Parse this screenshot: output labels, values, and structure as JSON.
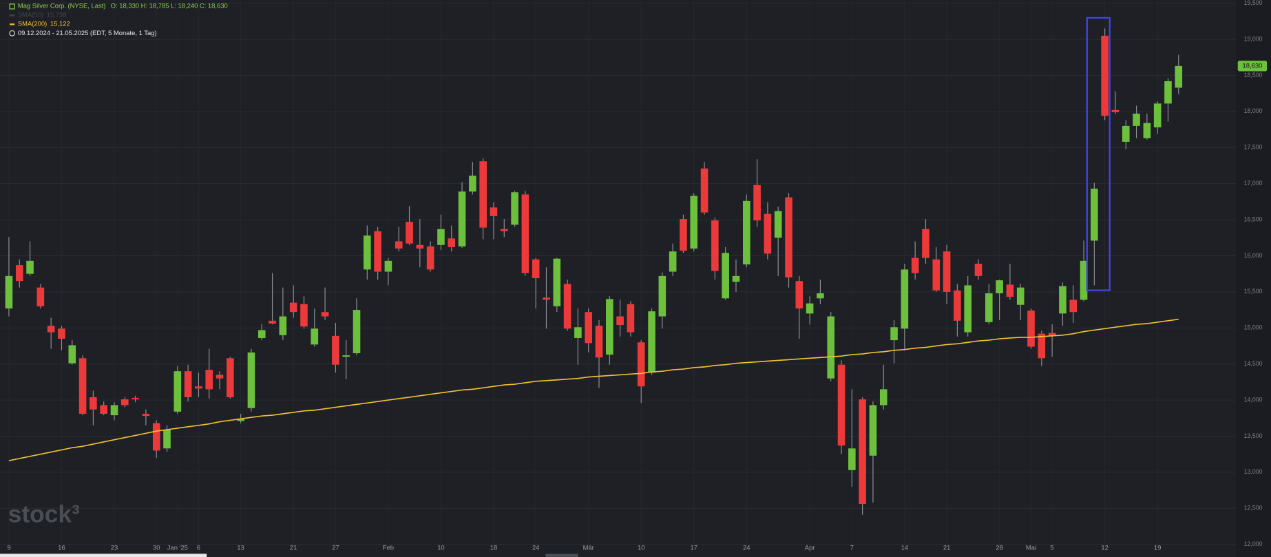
{
  "chart_data": {
    "type": "candlestick",
    "title": "Mag Silver Corp. (NYSE, Last)",
    "ohlc_summary": "O: 18,330  H: 18,785  L: 18,240  C: 18,630",
    "period": "09.12.2024 - 21.05.2025  (EDT, 5 Monate, 1 Tag)",
    "last_label": "18,630",
    "watermark": "stock³",
    "up_color": "#6cc03c",
    "down_color": "#ec3a3a",
    "wick_color": "#8e9198",
    "grid": true,
    "ylim": [
      11.96,
      19.545
    ],
    "yticks": [
      {
        "value": 12,
        "label": "12,000"
      },
      {
        "value": 12.5,
        "label": "12,500"
      },
      {
        "value": 13,
        "label": "13,000"
      },
      {
        "value": 13.5,
        "label": "13,500"
      },
      {
        "value": 14,
        "label": "14,000"
      },
      {
        "value": 14.5,
        "label": "14,500"
      },
      {
        "value": 15,
        "label": "15,000"
      },
      {
        "value": 15.5,
        "label": "15,500"
      },
      {
        "value": 16,
        "label": "16,000"
      },
      {
        "value": 16.5,
        "label": "16,500"
      },
      {
        "value": 17,
        "label": "17,000"
      },
      {
        "value": 17.5,
        "label": "17,500"
      },
      {
        "value": 18,
        "label": "18,000"
      },
      {
        "value": 18.5,
        "label": "18,500"
      },
      {
        "value": 19,
        "label": "19,000"
      },
      {
        "value": 19.5,
        "label": "19,500"
      }
    ],
    "categories": [
      "9",
      null,
      null,
      null,
      null,
      "16",
      null,
      null,
      null,
      null,
      "23",
      null,
      null,
      null,
      "30",
      null,
      "Jan '25",
      null,
      "6",
      null,
      null,
      null,
      "13",
      null,
      null,
      null,
      null,
      "21",
      null,
      null,
      null,
      "27",
      null,
      null,
      null,
      null,
      "Feb",
      null,
      null,
      null,
      null,
      "10",
      null,
      null,
      null,
      null,
      "18",
      null,
      null,
      null,
      "24",
      null,
      null,
      null,
      null,
      "Mär",
      null,
      null,
      null,
      null,
      "10",
      null,
      null,
      null,
      null,
      "17",
      null,
      null,
      null,
      null,
      "24",
      null,
      null,
      null,
      null,
      null,
      "Apr",
      null,
      null,
      null,
      "7",
      null,
      null,
      null,
      null,
      "14",
      null,
      null,
      null,
      "21",
      null,
      null,
      null,
      null,
      "28",
      null,
      null,
      "Mai",
      null,
      "5",
      null,
      null,
      null,
      null,
      "12",
      null,
      null,
      null,
      null,
      "19",
      null,
      null
    ],
    "open": [
      15.27,
      15.87,
      15.75,
      15.56,
      15.03,
      14.99,
      14.51,
      14.58,
      14.04,
      13.93,
      13.79,
      14.01,
      14.03,
      13.81,
      13.68,
      13.33,
      13.84,
      14.4,
      14.19,
      14.42,
      14.35,
      14.58,
      13.71,
      13.89,
      14.86,
      15.1,
      14.9,
      15.35,
      15.33,
      14.77,
      15.22,
      14.89,
      14.6,
      14.65,
      15.81,
      16.34,
      15.78,
      16.2,
      16.47,
      16.15,
      16.13,
      16.15,
      16.24,
      16.13,
      16.89,
      17.31,
      16.67,
      16.37,
      16.43,
      16.85,
      15.95,
      15.42,
      15.3,
      15.61,
      14.86,
      15.22,
      15.03,
      14.63,
      15.16,
      15.33,
      14.8,
      14.38,
      15.16,
      15.78,
      16.51,
      16.1,
      17.21,
      16.49,
      15.41,
      15.64,
      15.88,
      16.98,
      16.58,
      16.25,
      16.81,
      15.65,
      15.2,
      15.41,
      14.3,
      14.49,
      13.03,
      14.01,
      13.23,
      13.93,
      14.83,
      14.99,
      15.97,
      16.37,
      15.95,
      16.06,
      15.52,
      14.94,
      15.89,
      15.08,
      15.48,
      15.6,
      15.32,
      15.24,
      14.92,
      14.93,
      15.2,
      15.39,
      15.39,
      16.21,
      19.05,
      18.02,
      17.58,
      17.8,
      17.63,
      17.78,
      18.11,
      18.33
    ],
    "high": [
      16.26,
      15.95,
      16.2,
      15.61,
      15.14,
      15.03,
      14.83,
      14.62,
      14.13,
      13.98,
      13.97,
      14.04,
      14.06,
      13.87,
      13.72,
      13.65,
      14.47,
      14.49,
      14.38,
      14.71,
      14.4,
      14.6,
      13.81,
      14.71,
      15.05,
      15.76,
      15.56,
      15.59,
      15.44,
      15.27,
      15.56,
      15.07,
      14.83,
      15.41,
      16.42,
      16.4,
      15.97,
      16.4,
      16.69,
      16.51,
      16.2,
      16.57,
      16.42,
      17.02,
      17.3,
      17.35,
      16.74,
      16.51,
      16.9,
      16.9,
      15.97,
      15.84,
      15.97,
      15.67,
      15.27,
      15.27,
      15.11,
      15.44,
      15.39,
      15.37,
      14.83,
      15.27,
      15.77,
      16.17,
      16.57,
      16.87,
      17.3,
      16.53,
      16.12,
      15.95,
      16.85,
      17.34,
      16.74,
      16.68,
      16.87,
      15.72,
      15.44,
      15.67,
      15.22,
      14.55,
      14.15,
      14.04,
      13.98,
      14.49,
      15.11,
      15.89,
      16.2,
      16.51,
      16.12,
      16.15,
      15.61,
      15.72,
      15.95,
      15.61,
      15.67,
      15.89,
      15.61,
      15.27,
      14.96,
      15.05,
      15.63,
      15.59,
      16.21,
      17.01,
      19.15,
      18.28,
      17.88,
      18.08,
      17.97,
      18.14,
      18.46,
      18.785
    ],
    "low": [
      15.16,
      15.56,
      15.72,
      15.27,
      14.71,
      14.69,
      14.49,
      13.79,
      13.65,
      13.79,
      13.72,
      13.9,
      13.97,
      13.65,
      13.2,
      13.28,
      13.81,
      13.98,
      14.04,
      14.02,
      14.15,
      14.02,
      13.68,
      13.84,
      14.83,
      15.05,
      14.83,
      15.14,
      14.99,
      14.74,
      15.11,
      14.38,
      14.29,
      14.62,
      15.67,
      15.67,
      15.59,
      16.06,
      16.15,
      15.84,
      15.78,
      16.08,
      16.06,
      16.11,
      16.85,
      16.23,
      16.23,
      16.26,
      16.4,
      15.72,
      15.27,
      14.99,
      15.22,
      14.96,
      14.49,
      14.66,
      14.17,
      14.49,
      14.88,
      14.88,
      13.96,
      14.35,
      14.99,
      15.72,
      16.04,
      16.06,
      16.57,
      15.67,
      15.39,
      15.5,
      15.84,
      16.4,
      15.95,
      15.72,
      15.56,
      14.85,
      15.05,
      15.33,
      14.26,
      13.25,
      12.8,
      12.41,
      12.58,
      13.87,
      14.51,
      14.69,
      15.67,
      15.89,
      15.5,
      15.33,
      14.88,
      14.88,
      15.67,
      15.05,
      15.11,
      15.39,
      15.11,
      14.71,
      14.47,
      14.6,
      15.03,
      15.07,
      15.37,
      15.59,
      17.88,
      17.97,
      17.48,
      17.63,
      17.61,
      17.69,
      17.86,
      18.24
    ],
    "close": [
      15.72,
      15.65,
      15.93,
      15.3,
      14.94,
      14.85,
      14.76,
      13.81,
      13.87,
      13.81,
      13.93,
      13.93,
      14.01,
      13.78,
      13.3,
      13.59,
      14.4,
      14.04,
      14.16,
      14.15,
      14.3,
      14.04,
      13.74,
      14.66,
      14.97,
      15.06,
      15.16,
      15.22,
      15.02,
      14.99,
      15.16,
      14.49,
      14.62,
      15.25,
      16.28,
      15.78,
      15.93,
      16.1,
      16.17,
      16.1,
      15.81,
      16.37,
      16.12,
      16.89,
      17.11,
      16.39,
      16.55,
      16.34,
      16.88,
      15.76,
      15.69,
      15.39,
      15.96,
      14.99,
      15.01,
      14.79,
      14.59,
      15.4,
      15.04,
      14.94,
      14.19,
      15.23,
      15.72,
      16.06,
      16.07,
      16.83,
      16.6,
      15.79,
      16.04,
      15.72,
      16.76,
      16.49,
      16.03,
      16.62,
      15.7,
      15.27,
      15.34,
      15.48,
      15.16,
      13.37,
      13.33,
      12.56,
      13.93,
      14.15,
      15.01,
      15.81,
      15.76,
      15.97,
      15.52,
      15.5,
      15.1,
      15.59,
      15.72,
      15.48,
      15.66,
      15.43,
      15.56,
      14.74,
      14.58,
      14.89,
      15.58,
      15.22,
      15.93,
      16.93,
      17.94,
      17.99,
      17.8,
      17.97,
      17.84,
      18.11,
      18.42,
      18.63
    ],
    "series": [
      {
        "name": "SMA(50)",
        "value_label": "15,798",
        "color": "#6d7077",
        "visible": false
      },
      {
        "name": "SMA(200)",
        "value_label": "15,122",
        "color": "#f2c12e",
        "visible": true,
        "values": [
          13.16,
          13.19,
          13.22,
          13.25,
          13.28,
          13.31,
          13.34,
          13.36,
          13.39,
          13.42,
          13.45,
          13.48,
          13.51,
          13.54,
          13.57,
          13.59,
          13.61,
          13.63,
          13.65,
          13.67,
          13.7,
          13.72,
          13.74,
          13.76,
          13.78,
          13.79,
          13.81,
          13.83,
          13.85,
          13.86,
          13.88,
          13.9,
          13.92,
          13.94,
          13.96,
          13.98,
          14.0,
          14.02,
          14.04,
          14.06,
          14.08,
          14.1,
          14.12,
          14.14,
          14.15,
          14.17,
          14.19,
          14.21,
          14.22,
          14.24,
          14.26,
          14.27,
          14.28,
          14.29,
          14.3,
          14.32,
          14.33,
          14.34,
          14.35,
          14.36,
          14.37,
          14.39,
          14.4,
          14.42,
          14.43,
          14.45,
          14.46,
          14.48,
          14.49,
          14.51,
          14.52,
          14.53,
          14.54,
          14.55,
          14.56,
          14.57,
          14.58,
          14.59,
          14.6,
          14.61,
          14.63,
          14.64,
          14.66,
          14.67,
          14.69,
          14.7,
          14.72,
          14.73,
          14.75,
          14.77,
          14.78,
          14.8,
          14.82,
          14.83,
          14.85,
          14.86,
          14.87,
          14.87,
          14.88,
          14.89,
          14.9,
          14.92,
          14.95,
          14.97,
          14.99,
          15.01,
          15.03,
          15.05,
          15.06,
          15.08,
          15.1,
          15.12
        ]
      }
    ]
  }
}
